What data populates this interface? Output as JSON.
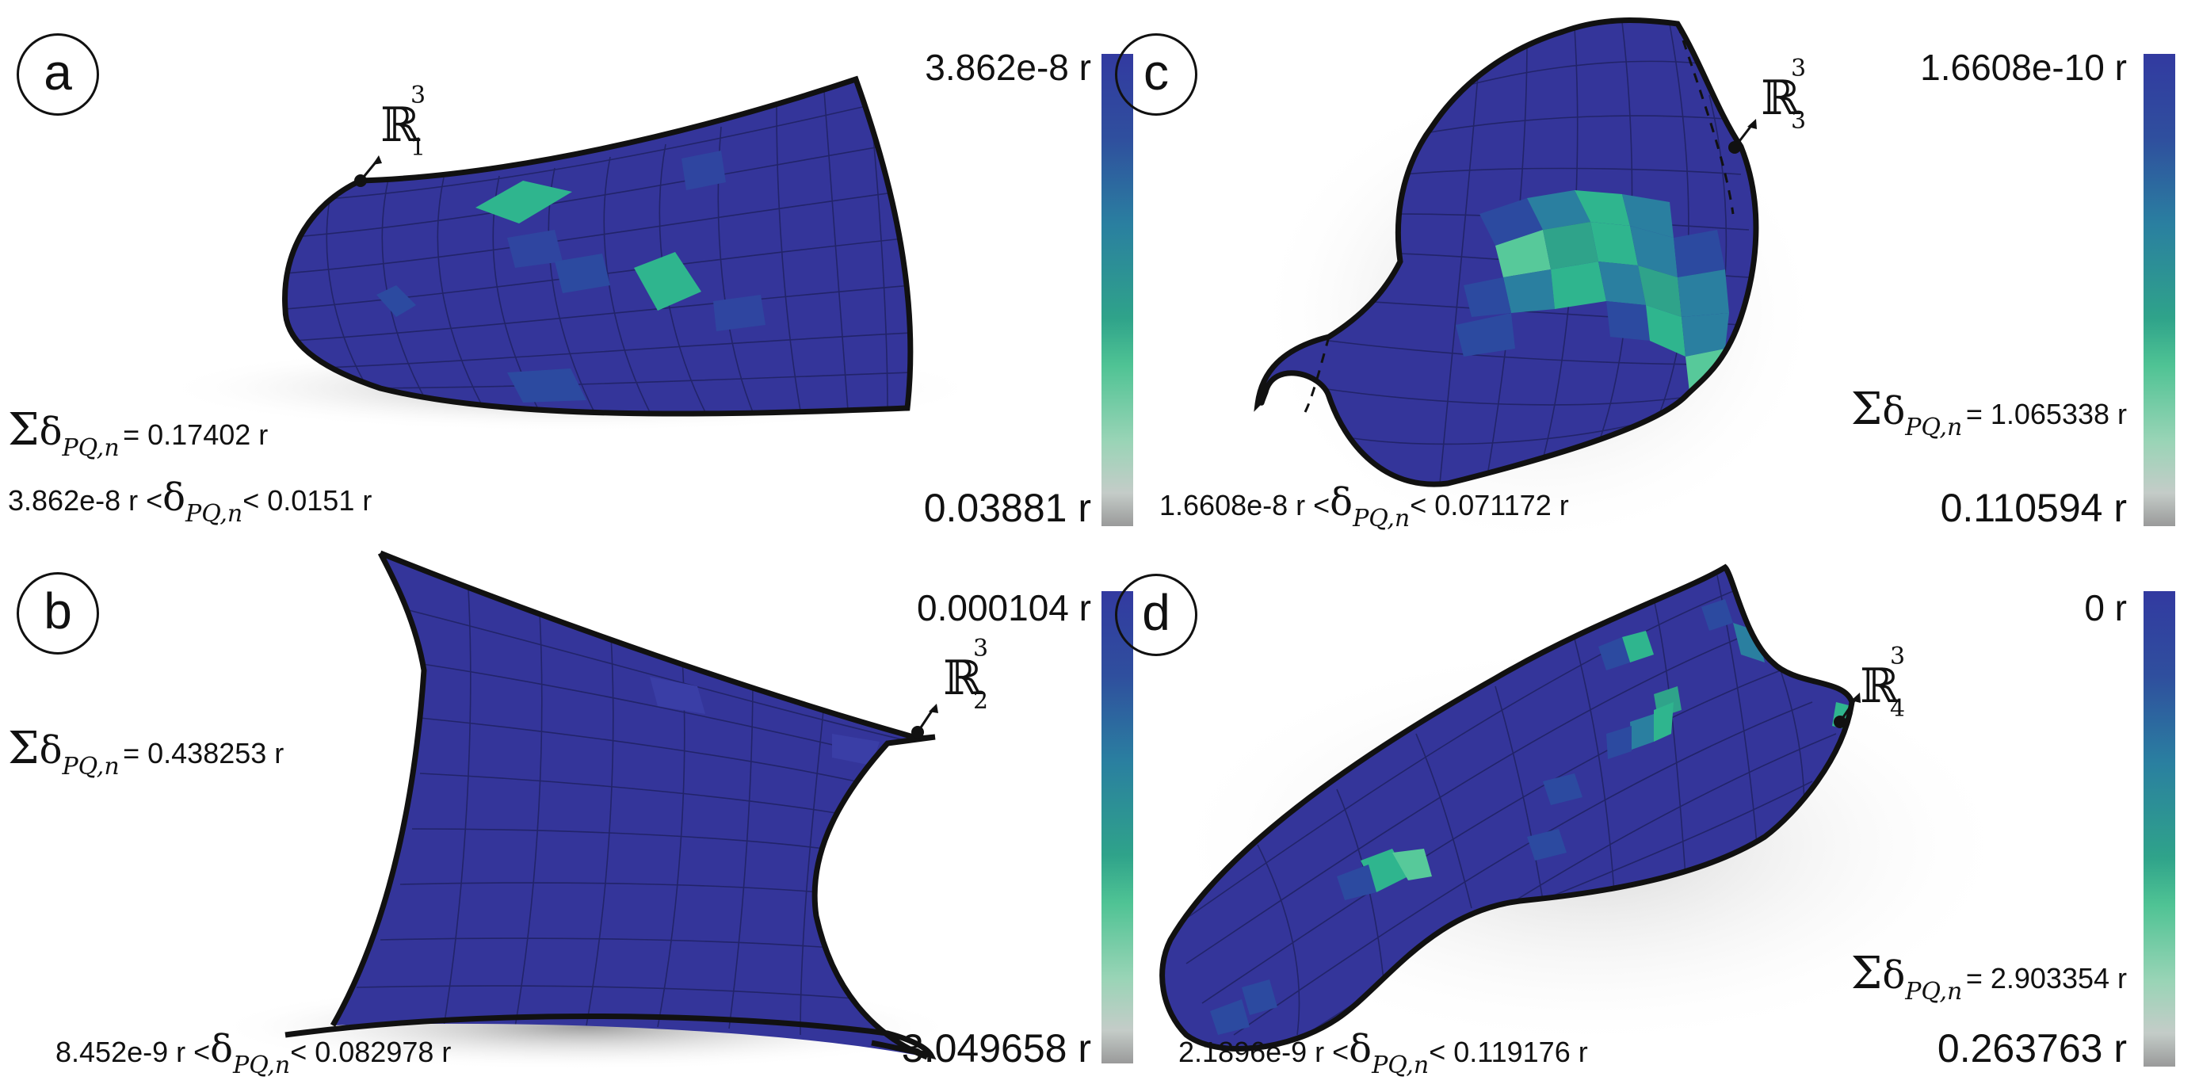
{
  "panels": [
    {
      "letter": "a",
      "space": {
        "symbol": "ℝ",
        "sup": "3",
        "sub": "1"
      },
      "colorbar": {
        "top": "3.862e-8 r",
        "bottom": "0.03881 r"
      },
      "sum": {
        "sigma": "Σ",
        "delta": "δ",
        "subscript": "PQ,n",
        "value": "= 0.17402 r"
      },
      "range": {
        "low": "3.862e-8 r <",
        "delta": "δ",
        "subscript": "PQ,n",
        "high": "< 0.0151 r"
      }
    },
    {
      "letter": "b",
      "space": {
        "symbol": "ℝ",
        "sup": "3",
        "sub": "2"
      },
      "colorbar": {
        "top": "0.000104 r",
        "bottom": "3.049658 r"
      },
      "sum": {
        "sigma": "Σ",
        "delta": "δ",
        "subscript": "PQ,n",
        "value": "= 0.438253 r"
      },
      "range": {
        "low": "8.452e-9 r <",
        "delta": "δ",
        "subscript": "PQ,n",
        "high": "< 0.082978 r"
      }
    },
    {
      "letter": "c",
      "space": {
        "symbol": "ℝ",
        "sup": "3",
        "sub": "3"
      },
      "colorbar": {
        "top": "1.6608e-10 r",
        "bottom": "0.110594 r"
      },
      "sum": {
        "sigma": "Σ",
        "delta": "δ",
        "subscript": "PQ,n",
        "value": "= 1.065338 r"
      },
      "range": {
        "low": "1.6608e-8 r <",
        "delta": "δ",
        "subscript": "PQ,n",
        "high": "< 0.071172 r"
      }
    },
    {
      "letter": "d",
      "space": {
        "symbol": "ℝ",
        "sup": "3",
        "sub": "4"
      },
      "colorbar": {
        "top": "0 r",
        "bottom": "0.263763 r"
      },
      "sum": {
        "sigma": "Σ",
        "delta": "δ",
        "subscript": "PQ,n",
        "value": "= 2.903354 r"
      },
      "range": {
        "low": "2.1896e-9 r <",
        "delta": "δ",
        "subscript": "PQ,n",
        "high": "< 0.119176 r"
      }
    }
  ],
  "colors": {
    "surface": "#34359a",
    "surface_mid": "#2c4aa0",
    "highlight": "#2fb58e",
    "highlight_light": "#57c99a",
    "outline": "#111111",
    "grid": "#22246a",
    "shadow": "#b8b8b8"
  }
}
